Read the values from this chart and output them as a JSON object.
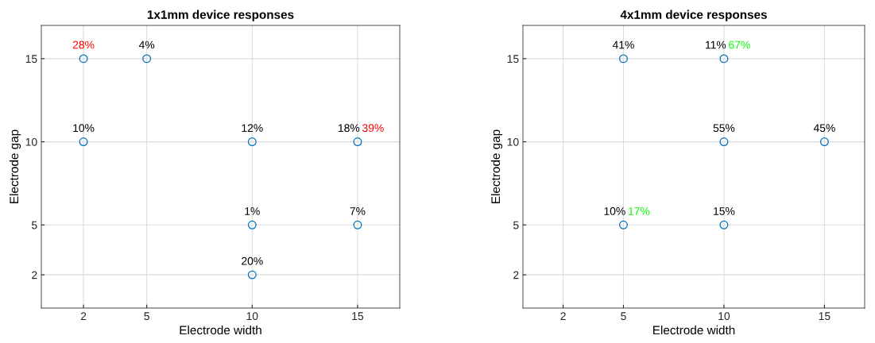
{
  "chart_data": [
    {
      "type": "scatter",
      "title": "1x1mm device responses",
      "xlabel": "Electrode width",
      "ylabel": "Electrode gap",
      "series": [
        {
          "color": "#0072bd",
          "marker": "circle",
          "x": [
            5,
            2,
            10,
            10,
            15,
            10
          ],
          "values": [
            15,
            10,
            10,
            5,
            5,
            2
          ]
        },
        {
          "name": "28%",
          "color": "#ff0000",
          "colors": [
            "#0072bd"
          ],
          "marker": "circle",
          "x": [
            2
          ],
          "values": [
            15
          ]
        },
        {
          "name": "39%",
          "color": "#ff0000",
          "colors": [
            "#0072bd"
          ],
          "marker": "circle",
          "x": [
            15
          ],
          "values": [
            10
          ]
        }
      ],
      "annotations": [
        {
          "text": "4%",
          "x": 5,
          "y": 15
        },
        {
          "text": "10%",
          "x": 2,
          "y": 10
        },
        {
          "text": "12%",
          "x": 10,
          "y": 10
        },
        {
          "text": "18%",
          "x": 15,
          "y": 10
        },
        {
          "text": "1%",
          "x": 10,
          "y": 5
        },
        {
          "text": "7%",
          "x": 15,
          "y": 5
        },
        {
          "text": "20%",
          "x": 10,
          "y": 2
        }
      ],
      "xlim": [
        0,
        17
      ],
      "ylim": [
        0,
        17
      ],
      "xticks": [
        2,
        5,
        10,
        15
      ],
      "yticks": [
        2,
        5,
        10,
        15
      ],
      "grid": true
    },
    {
      "type": "scatter",
      "title": "4x1mm device responses",
      "xlabel": "Electrode width",
      "ylabel": "Electrode gap",
      "series": [
        {
          "color": "#0072bd",
          "marker": "circle",
          "x": [
            5,
            10,
            15,
            10
          ],
          "values": [
            15,
            10,
            10,
            5
          ]
        },
        {
          "name": "67%",
          "color": "#00ff00",
          "colors": [
            "#0072bd"
          ],
          "marker": "circle",
          "x": [
            10
          ],
          "values": [
            15
          ]
        },
        {
          "name": "17%",
          "color": "#00ff00",
          "colors": [
            "#0072bd"
          ],
          "marker": "circle",
          "x": [
            5
          ],
          "values": [
            5
          ]
        }
      ],
      "annotations": [
        {
          "text": "41%",
          "x": 5,
          "y": 15
        },
        {
          "text": "11%",
          "x": 10,
          "y": 15
        },
        {
          "text": "55%",
          "x": 10,
          "y": 10
        },
        {
          "text": "45%",
          "x": 15,
          "y": 10
        },
        {
          "text": "10%",
          "x": 5,
          "y": 5
        },
        {
          "text": "15%",
          "x": 10,
          "y": 5
        }
      ],
      "xlim": [
        0,
        17
      ],
      "ylim": [
        0,
        17
      ],
      "xticks": [
        2,
        5,
        10,
        15
      ],
      "yticks": [
        2,
        5,
        10,
        15
      ],
      "grid": true
    }
  ]
}
